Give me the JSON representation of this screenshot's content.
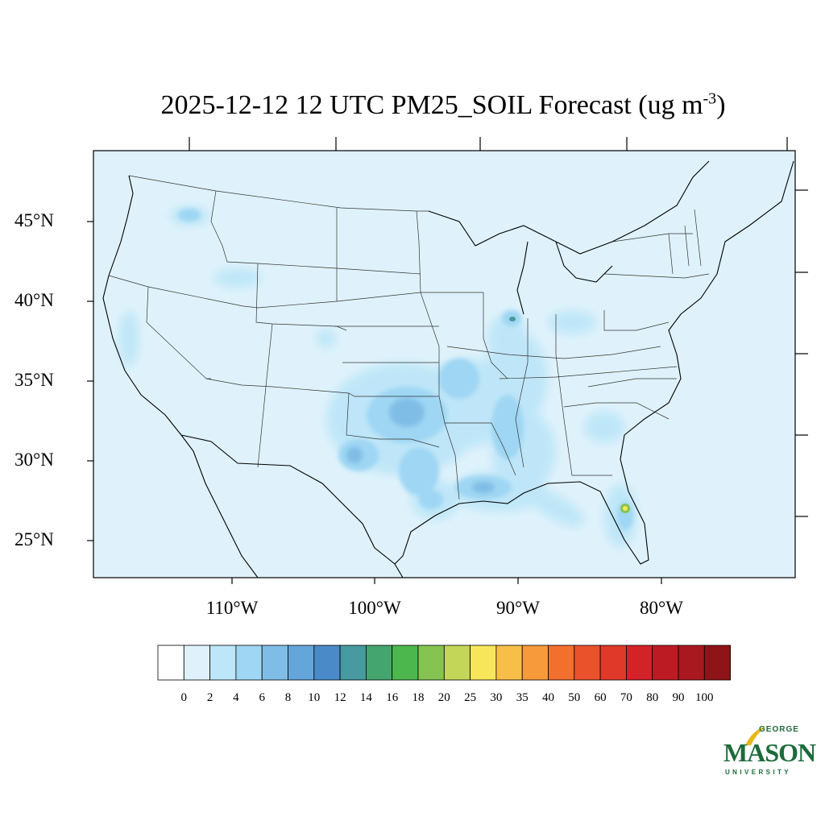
{
  "title": {
    "main": "2025-12-12 12 UTC PM25_SOIL Forecast (ug m",
    "superscript": "-3",
    "close": ")"
  },
  "map": {
    "background_color": "#dff2fb",
    "lat_labels": [
      "45°N",
      "40°N",
      "35°N",
      "30°N",
      "25°N"
    ],
    "lon_labels": [
      "110°W",
      "100°W",
      "90°W",
      "80°W"
    ]
  },
  "colorbar": {
    "labels": [
      "0",
      "2",
      "4",
      "6",
      "8",
      "10",
      "12",
      "14",
      "16",
      "18",
      "20",
      "25",
      "30",
      "35",
      "40",
      "50",
      "60",
      "70",
      "80",
      "90",
      "100"
    ],
    "colors": [
      "#ffffff",
      "#dff2fb",
      "#bde6f8",
      "#9ed6f3",
      "#80bde6",
      "#65a6da",
      "#4a8ac8",
      "#479a9f",
      "#45a56e",
      "#4cb74c",
      "#85c450",
      "#c3d657",
      "#f7e65a",
      "#f8bf48",
      "#f69a3b",
      "#f36f2e",
      "#ea522b",
      "#e0392a",
      "#d42229",
      "#bd1b24",
      "#a9181f",
      "#8e1417"
    ]
  },
  "logo": {
    "line1": "GEORGE",
    "line2": "MASON",
    "line3": "UNIVERSITY",
    "color": "#1d6b3a",
    "accent_color": "#e8b717"
  }
}
